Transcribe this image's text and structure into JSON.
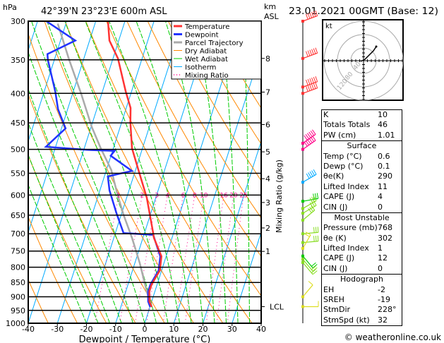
{
  "header": {
    "left_unit": "hPa",
    "location": "42°39'N  23°23'E  600m  ASL",
    "right_unit_1": "km",
    "right_unit_2": "ASL",
    "datetime": "23.01.2021  00GMT  (Base: 12)"
  },
  "footer": "© weatheronline.co.uk",
  "colors": {
    "temperature": "#ff3333",
    "dewpoint": "#2233ff",
    "parcel": "#aaaaaa",
    "dry": "#ff8800",
    "wet": "#00cc00",
    "isotherm": "#00aaff",
    "mixing": "#ff0088"
  },
  "chart_data": {
    "type": "skew-t log-p",
    "xlabel": "Dewpoint / Temperature (°C)",
    "ylabel": "hPa",
    "xlim": [
      -40,
      40
    ],
    "ylim": [
      1000,
      300
    ],
    "y_scale": "log",
    "x_ticks": [
      -40,
      -30,
      -20,
      -10,
      0,
      10,
      20,
      30,
      40
    ],
    "p_ticks": [
      300,
      350,
      400,
      450,
      500,
      550,
      600,
      650,
      700,
      750,
      800,
      850,
      900,
      950,
      1000
    ],
    "km_ticks": [
      {
        "label": "8",
        "p": 348
      },
      {
        "label": "7",
        "p": 398
      },
      {
        "label": "6",
        "p": 453
      },
      {
        "label": "5",
        "p": 505
      },
      {
        "label": "4",
        "p": 562
      },
      {
        "label": "3",
        "p": 618
      },
      {
        "label": "2",
        "p": 684
      },
      {
        "label": "1",
        "p": 751
      },
      {
        "label": "LCL",
        "p": 936
      }
    ],
    "mixing_ratio_label": "Mixing Ratio (g/kg)",
    "mixing_ratios": [
      1,
      2,
      3,
      4,
      6,
      8,
      10,
      16,
      20,
      25
    ],
    "legend": [
      "Temperature",
      "Dewpoint",
      "Parcel Trajectory",
      "Dry Adiabat",
      "Wet Adiabat",
      "Isotherm",
      "Mixing Ratio"
    ],
    "legend_position": "top-right",
    "temperature": [
      [
        937,
        0.6
      ],
      [
        917,
        -0.8
      ],
      [
        881,
        -1.9
      ],
      [
        857,
        -1.9
      ],
      [
        810,
        -0.6
      ],
      [
        766,
        -1.6
      ],
      [
        712,
        -6.2
      ],
      [
        698,
        -7
      ],
      [
        606,
        -13.1
      ],
      [
        549,
        -18.4
      ],
      [
        498,
        -23.6
      ],
      [
        449,
        -27
      ],
      [
        424,
        -28.5
      ],
      [
        397,
        -32
      ],
      [
        348,
        -38.3
      ],
      [
        324,
        -43.2
      ],
      [
        300,
        -45.8
      ]
    ],
    "dewpoint": [
      [
        937,
        0.1
      ],
      [
        917,
        -1.2
      ],
      [
        881,
        -2.3
      ],
      [
        857,
        -2.3
      ],
      [
        810,
        -1.0
      ],
      [
        766,
        -2.0
      ],
      [
        703,
        -6.8
      ],
      [
        698,
        -17.2
      ],
      [
        646,
        -21.7
      ],
      [
        589,
        -26.7
      ],
      [
        557,
        -28.8
      ],
      [
        549,
        -23.8
      ],
      [
        545,
        -21.1
      ],
      [
        513,
        -30.1
      ],
      [
        503,
        -29.3
      ],
      [
        501,
        -39
      ],
      [
        495,
        -53.3
      ],
      [
        460,
        -48.6
      ],
      [
        426,
        -53.3
      ],
      [
        397,
        -56.2
      ],
      [
        350,
        -62.2
      ],
      [
        342,
        -63
      ],
      [
        324,
        -54.9
      ],
      [
        300,
        -67
      ]
    ],
    "parcel": [
      [
        937,
        0.6
      ],
      [
        881,
        -2.8
      ],
      [
        787,
        -8.3
      ],
      [
        712,
        -13.7
      ],
      [
        650,
        -19.1
      ],
      [
        601,
        -23.3
      ],
      [
        543,
        -28.3
      ],
      [
        498,
        -34.3
      ],
      [
        457,
        -39.8
      ],
      [
        401,
        -47
      ],
      [
        350,
        -54.9
      ],
      [
        303,
        -62.8
      ]
    ],
    "wind_barbs": [
      {
        "p": 300,
        "color": "#ff3333",
        "dir": 250,
        "spd": 120
      },
      {
        "p": 348,
        "color": "#ff3333",
        "dir": 250,
        "spd": 90
      },
      {
        "p": 390,
        "color": "#ff3333",
        "dir": 250,
        "spd": 110
      },
      {
        "p": 400,
        "color": "#ff3333",
        "dir": 250,
        "spd": 110
      },
      {
        "p": 488,
        "color": "#ff0088",
        "dir": 235,
        "spd": 60
      },
      {
        "p": 500,
        "color": "#ff0088",
        "dir": 235,
        "spd": 60
      },
      {
        "p": 570,
        "color": "#00aaff",
        "dir": 240,
        "spd": 45
      },
      {
        "p": 615,
        "color": "#00cc00",
        "dir": 260,
        "spd": 25
      },
      {
        "p": 633,
        "color": "#88dd22",
        "dir": 240,
        "spd": 25
      },
      {
        "p": 645,
        "color": "#88dd22",
        "dir": 240,
        "spd": 25
      },
      {
        "p": 663,
        "color": "#88dd22",
        "dir": 230,
        "spd": 25
      },
      {
        "p": 700,
        "color": "#88dd22",
        "dir": 265,
        "spd": 25
      },
      {
        "p": 725,
        "color": "#88dd22",
        "dir": 265,
        "spd": 25
      },
      {
        "p": 742,
        "color": "#dddd22",
        "dir": 210,
        "spd": 15
      },
      {
        "p": 765,
        "color": "#00cc00",
        "dir": 320,
        "spd": 20
      },
      {
        "p": 775,
        "color": "#88dd22",
        "dir": 320,
        "spd": 20
      },
      {
        "p": 785,
        "color": "#88dd22",
        "dir": 320,
        "spd": 20
      },
      {
        "p": 900,
        "color": "#dddd22",
        "dir": 220,
        "spd": 10
      },
      {
        "p": 936,
        "color": "#dddd22",
        "dir": 270,
        "spd": 10
      }
    ]
  },
  "hodograph": {
    "unit": "kt",
    "rings": [
      "40",
      "80",
      "120"
    ]
  },
  "indices": {
    "top": [
      {
        "label": "K",
        "value": "10"
      },
      {
        "label": "Totals Totals",
        "value": "46"
      },
      {
        "label": "PW (cm)",
        "value": "1.01"
      }
    ],
    "surface": {
      "title": "Surface",
      "rows": [
        {
          "label": "Temp (°C)",
          "value": "0.6"
        },
        {
          "label": "Dewp (°C)",
          "value": "0.1"
        },
        {
          "label": "θe(K)",
          "value": "290"
        },
        {
          "label": "Lifted Index",
          "value": "11"
        },
        {
          "label": "CAPE (J)",
          "value": "4"
        },
        {
          "label": "CIN (J)",
          "value": "0"
        }
      ]
    },
    "most_unstable": {
      "title": "Most Unstable",
      "rows": [
        {
          "label": "Pressure (mb)",
          "value": "768"
        },
        {
          "label": "θe (K)",
          "value": "302"
        },
        {
          "label": "Lifted Index",
          "value": "1"
        },
        {
          "label": "CAPE (J)",
          "value": "12"
        },
        {
          "label": "CIN (J)",
          "value": "0"
        }
      ]
    },
    "hodograph": {
      "title": "Hodograph",
      "rows": [
        {
          "label": "EH",
          "value": "-2"
        },
        {
          "label": "SREH",
          "value": "-19"
        },
        {
          "label": "StmDir",
          "value": "228°"
        },
        {
          "label": "StmSpd (kt)",
          "value": "32"
        }
      ]
    }
  }
}
